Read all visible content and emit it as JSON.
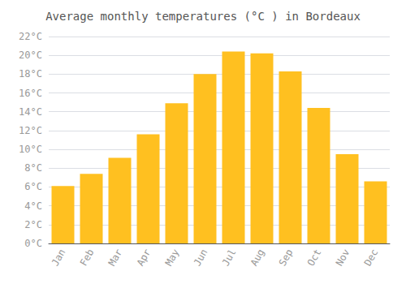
{
  "chart_data": {
    "type": "bar",
    "title": "Average monthly temperatures (°C ) in Bordeaux",
    "categories": [
      "Jan",
      "Feb",
      "Mar",
      "Apr",
      "May",
      "Jun",
      "Jul",
      "Aug",
      "Sep",
      "Oct",
      "Nov",
      "Dec"
    ],
    "values": [
      6.1,
      7.4,
      9.1,
      11.6,
      14.9,
      18.0,
      20.4,
      20.2,
      18.3,
      14.4,
      9.5,
      6.6
    ],
    "color": "#FFC020",
    "ylim": [
      0,
      22
    ],
    "yticks": [
      {
        "value": 0,
        "label": "0°C"
      },
      {
        "value": 2,
        "label": "2°C"
      },
      {
        "value": 4,
        "label": "4°C"
      },
      {
        "value": 6,
        "label": "6°C"
      },
      {
        "value": 8,
        "label": "8°C"
      },
      {
        "value": 10,
        "label": "10°C"
      },
      {
        "value": 12,
        "label": "12°C"
      },
      {
        "value": 14,
        "label": "14°C"
      },
      {
        "value": 16,
        "label": "16°C"
      },
      {
        "value": 18,
        "label": "18°C"
      },
      {
        "value": 20,
        "label": "20°C"
      },
      {
        "value": 22,
        "label": "22°C"
      }
    ],
    "grid": true
  }
}
